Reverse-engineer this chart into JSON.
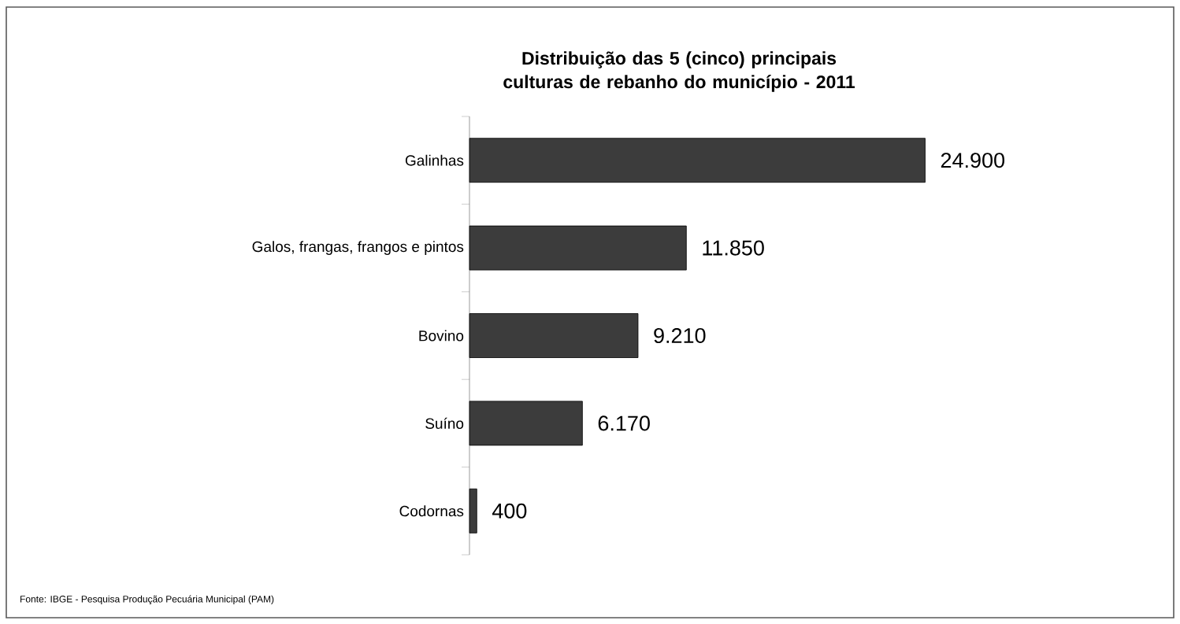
{
  "chart_data": {
    "type": "bar",
    "orientation": "horizontal",
    "title": "Distribuição das 5 (cinco) principais culturas de rebanho do município - 2011",
    "categories": [
      "Galinhas",
      "Galos, frangas, frangos e pintos",
      "Bovino",
      "Suíno",
      "Codornas"
    ],
    "values": [
      24900,
      11850,
      9210,
      6170,
      400
    ],
    "value_labels": [
      "24.900",
      "11.850",
      "9.210",
      "6.170",
      "400"
    ],
    "color": "#3c3c3c",
    "annotations": [
      "Fonte: IBGE - Pesquisa Produção Pecuária Municipal (PAM)"
    ]
  }
}
